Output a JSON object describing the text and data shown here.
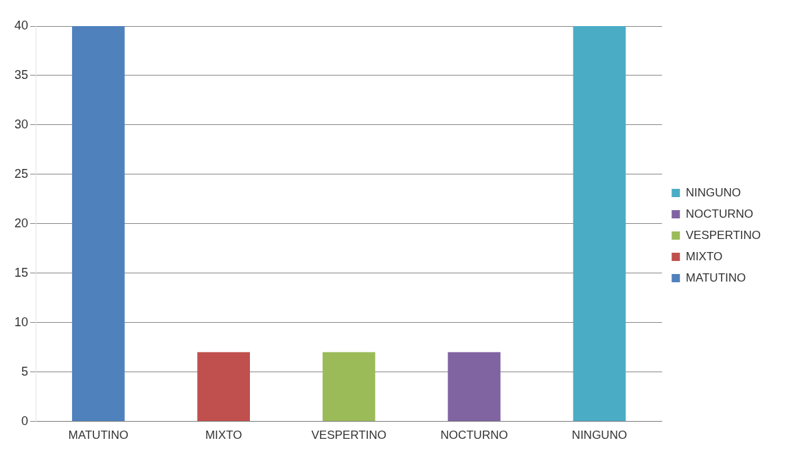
{
  "chart_data": {
    "type": "bar",
    "categories": [
      "MATUTINO",
      "MIXTO",
      "VESPERTINO",
      "NOCTURNO",
      "NINGUNO"
    ],
    "series": [
      {
        "name": "MATUTINO",
        "color": "#4f81bd",
        "values": [
          40,
          null,
          null,
          null,
          null
        ]
      },
      {
        "name": "MIXTO",
        "color": "#c0504d",
        "values": [
          null,
          7,
          null,
          null,
          null
        ]
      },
      {
        "name": "VESPERTINO",
        "color": "#9bbb59",
        "values": [
          null,
          null,
          7,
          null,
          null
        ]
      },
      {
        "name": "NOCTURNO",
        "color": "#8064a2",
        "values": [
          null,
          null,
          null,
          7,
          null
        ]
      },
      {
        "name": "NINGUNO",
        "color": "#4bacc6",
        "values": [
          null,
          null,
          null,
          null,
          40
        ]
      }
    ],
    "ylim": [
      0,
      40
    ],
    "yticks": [
      0,
      5,
      10,
      15,
      20,
      25,
      30,
      35,
      40
    ],
    "grid": "y",
    "legend": "right"
  }
}
